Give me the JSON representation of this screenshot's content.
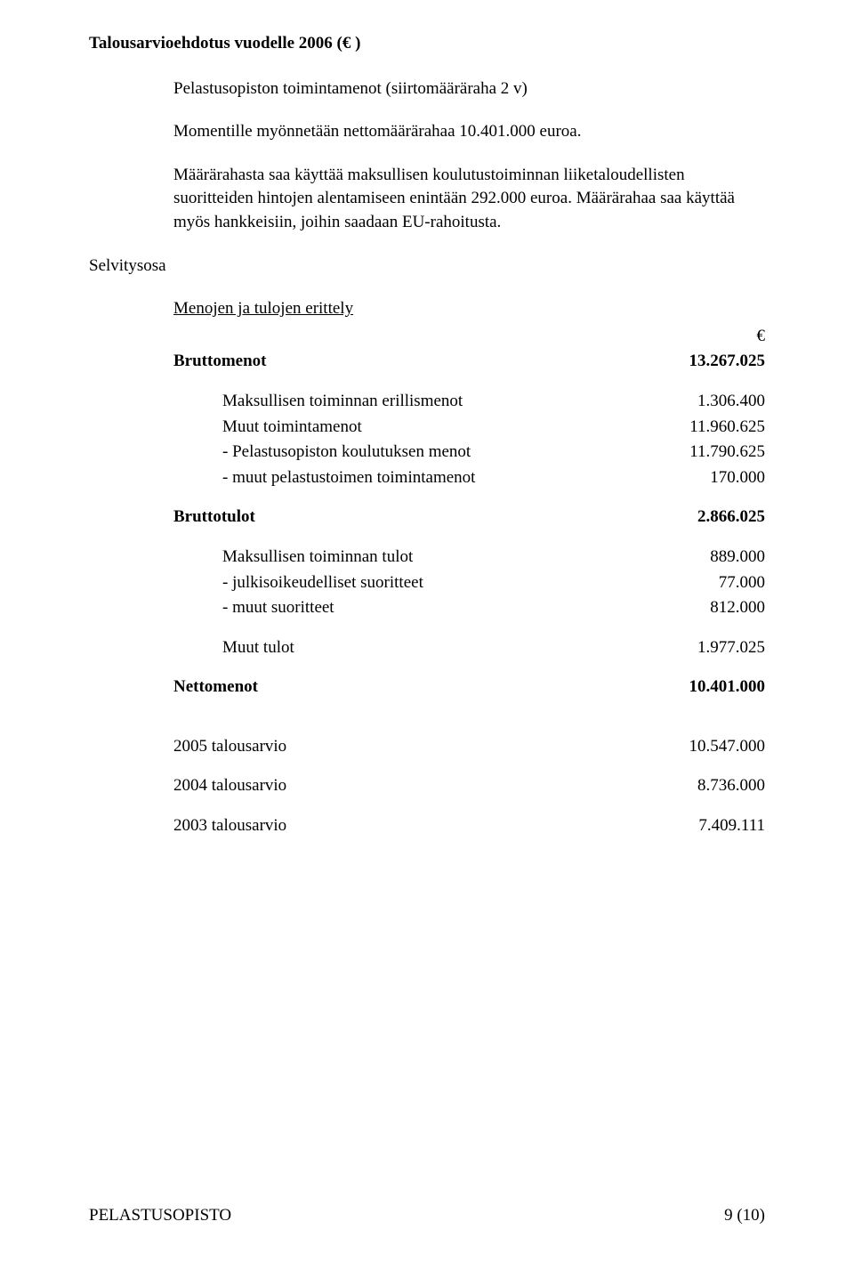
{
  "title": "Talousarvioehdotus vuodelle 2006 (€ )",
  "intro": {
    "line1": "Pelastusopiston toimintamenot (siirtomääräraha 2 v)",
    "line2": "Momentille myönnetään nettomäärärahaa 10.401.000 euroa.",
    "line3": "Määrärahasta saa käyttää maksullisen koulutustoiminnan liiketaloudellisten suoritteiden hintojen alentamiseen enintään 292.000 euroa. Määrärahaa saa käyttää myös hankkeisiin, joihin saadaan EU-rahoitusta."
  },
  "selvitysosa_label": "Selvitysosa",
  "menojen_heading": "Menojen ja tulojen erittely",
  "currency_symbol": "€",
  "bruttomenot": {
    "label": "Bruttomenot",
    "value": "13.267.025"
  },
  "menot_items": [
    {
      "label": "Maksullisen toiminnan erillismenot",
      "value": "1.306.400"
    },
    {
      "label": "Muut toimintamenot",
      "value": "11.960.625"
    },
    {
      "label": "- Pelastusopiston koulutuksen menot",
      "value": "11.790.625"
    },
    {
      "label": "- muut pelastustoimen toimintamenot",
      "value": "170.000"
    }
  ],
  "bruttotulot": {
    "label": "Bruttotulot",
    "value": "2.866.025"
  },
  "tulot_items": [
    {
      "label": "Maksullisen toiminnan tulot",
      "value": "889.000"
    },
    {
      "label": "- julkisoikeudelliset suoritteet",
      "value": "77.000"
    },
    {
      "label": "- muut suoritteet",
      "value": "812.000"
    }
  ],
  "muut_tulot": {
    "label": "Muut tulot",
    "value": "1.977.025"
  },
  "nettomenot": {
    "label": "Nettomenot",
    "value": "10.401.000"
  },
  "talousarvio": [
    {
      "label": "2005 talousarvio",
      "value": "10.547.000"
    },
    {
      "label": "2004 talousarvio",
      "value": "8.736.000"
    },
    {
      "label": "2003 talousarvio",
      "value": "7.409.111"
    }
  ],
  "footer": {
    "left": "PELASTUSOPISTO",
    "right": "9 (10)"
  }
}
